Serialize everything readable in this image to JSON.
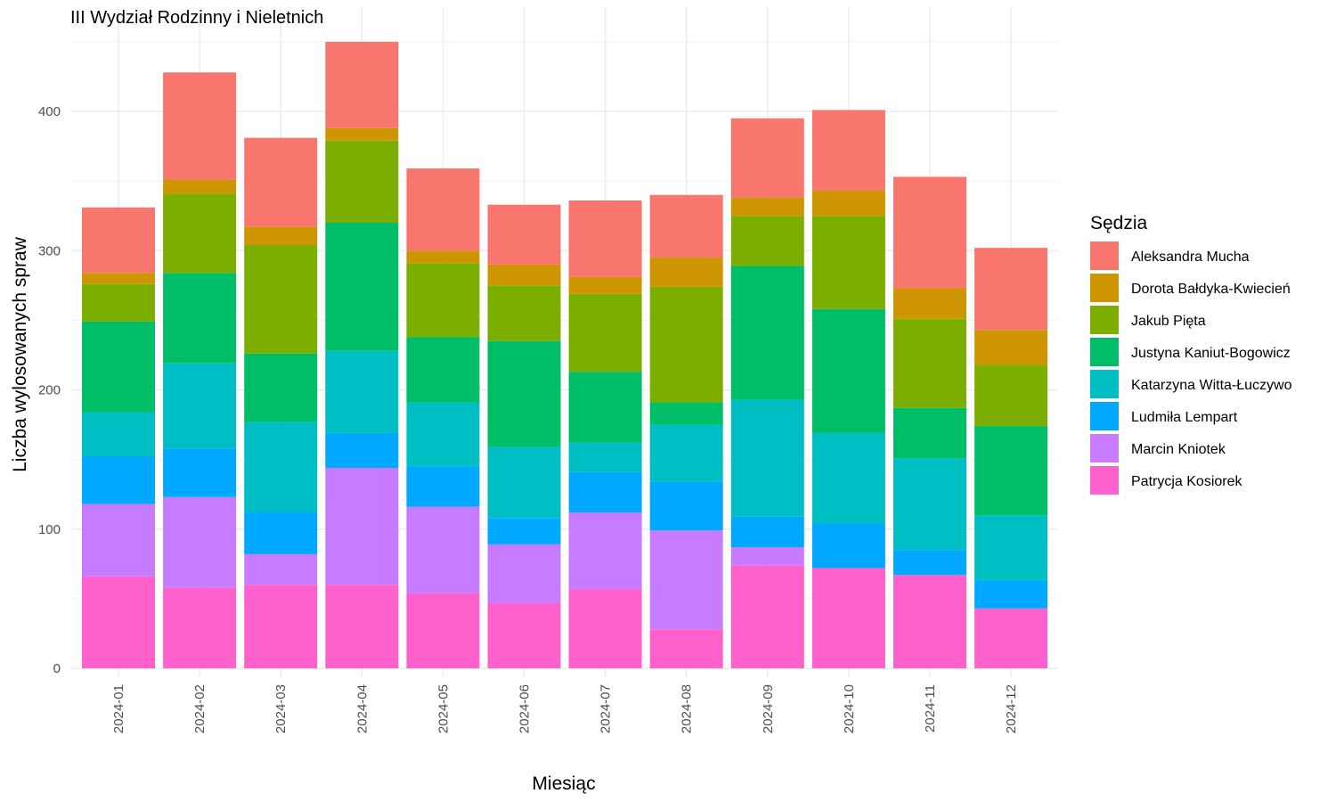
{
  "chart_data": {
    "type": "bar",
    "stacked": true,
    "title": "III Wydział Rodzinny i Nieletnich",
    "xlabel": "Miesiąc",
    "ylabel": "Liczba wylosowanych spraw",
    "ylim": [
      0,
      450
    ],
    "yticks": [
      0,
      100,
      200,
      300,
      400
    ],
    "grid": true,
    "legend_title": "Sędzia",
    "legend_position": "right",
    "categories": [
      "2024-01",
      "2024-02",
      "2024-03",
      "2024-04",
      "2024-05",
      "2024-06",
      "2024-07",
      "2024-08",
      "2024-09",
      "2024-10",
      "2024-11",
      "2024-12"
    ],
    "series": [
      {
        "name": "Patrycja Kosiorek",
        "color": "#FF61CC",
        "values": [
          66,
          58,
          60,
          60,
          54,
          47,
          57,
          28,
          74,
          72,
          67,
          43
        ]
      },
      {
        "name": "Marcin Kniotek",
        "color": "#C77CFF",
        "values": [
          52,
          65,
          22,
          84,
          62,
          42,
          55,
          71,
          13,
          0,
          0,
          0
        ]
      },
      {
        "name": "Ludmiła Lempart",
        "color": "#00A9FF",
        "values": [
          34,
          35,
          30,
          25,
          29,
          19,
          29,
          35,
          22,
          32,
          18,
          20
        ]
      },
      {
        "name": "Katarzyna Witta-Łuczywo",
        "color": "#00BFC4",
        "values": [
          32,
          61,
          65,
          59,
          46,
          51,
          21,
          41,
          84,
          65,
          66,
          47
        ]
      },
      {
        "name": "Justyna Kaniut-Bogowicz",
        "color": "#00BE67",
        "values": [
          65,
          65,
          49,
          92,
          47,
          76,
          51,
          16,
          96,
          89,
          36,
          64
        ]
      },
      {
        "name": "Jakub Pięta",
        "color": "#7CAE00",
        "values": [
          27,
          57,
          78,
          59,
          53,
          40,
          56,
          83,
          36,
          67,
          64,
          44
        ]
      },
      {
        "name": "Dorota Bałdyka-Kwiecień",
        "color": "#CD9600",
        "values": [
          8,
          10,
          13,
          9,
          9,
          15,
          12,
          21,
          13,
          18,
          22,
          25
        ]
      },
      {
        "name": "Aleksandra Mucha",
        "color": "#F8766D",
        "values": [
          47,
          77,
          64,
          62,
          59,
          43,
          55,
          45,
          57,
          58,
          80,
          59
        ]
      }
    ]
  }
}
